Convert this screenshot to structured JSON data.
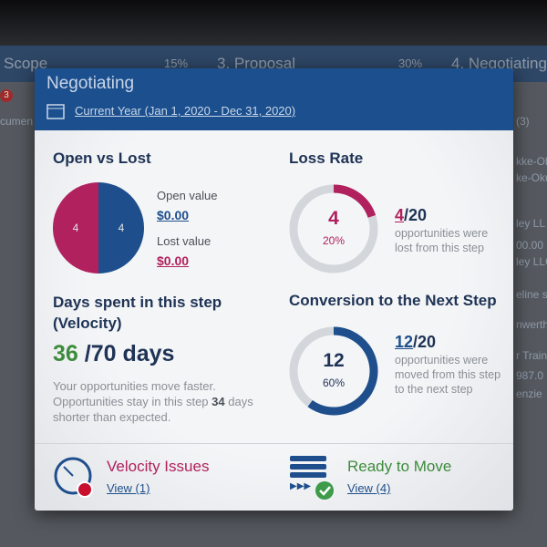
{
  "background": {
    "columns": [
      {
        "name": "Scope",
        "percent": "15%"
      },
      {
        "name": "3. Proposal",
        "percent": "30%"
      },
      {
        "name": "4. Negotiating"
      }
    ],
    "badge": "3",
    "fragments_left": [
      "cumen"
    ],
    "fragments_right": [
      "(3)",
      "kke-Ok",
      "ke-Oku",
      "ley LL",
      "00.00",
      "ley LLC",
      "eline s",
      "nwerth",
      "r Train",
      "987.0",
      "enzie"
    ]
  },
  "popup": {
    "title": "Negotiating",
    "period": "Current Year (Jan 1, 2020 - Dec 31, 2020)",
    "open_vs_lost": {
      "title": "Open vs Lost",
      "open": {
        "value": 4,
        "color": "#1e4f8c",
        "label": "Open value",
        "amount": "$0.00"
      },
      "lost": {
        "value": 4,
        "color": "#b0215e",
        "label": "Lost value",
        "amount": "$0.00"
      }
    },
    "loss_rate": {
      "title": "Loss Rate",
      "value": 4,
      "percent": {
        "value": 20,
        "label": "20%"
      },
      "count": "4",
      "total": "/20",
      "description": "opportunities were lost from this step",
      "color": "#b0215e"
    },
    "velocity": {
      "title": "Days spent in this step (Velocity)",
      "days": 36,
      "target": "/70 days",
      "note_start": "Your opportunities move faster. Opportunities stay in this step ",
      "note_days": "34",
      "note_end": " days shorter than expected."
    },
    "conversion": {
      "title": "Conversion to the Next Step",
      "value": 12,
      "percent": {
        "value": 60,
        "label": "60%"
      },
      "count": "12",
      "total": "/20",
      "description": "opportunities were moved from this step to the next step",
      "color": "#1e4f8c"
    },
    "footer": {
      "velocity_issues": {
        "title": "Velocity Issues",
        "link": "View (1)"
      },
      "ready": {
        "title": "Ready to Move",
        "link": "View (4)"
      }
    }
  }
}
